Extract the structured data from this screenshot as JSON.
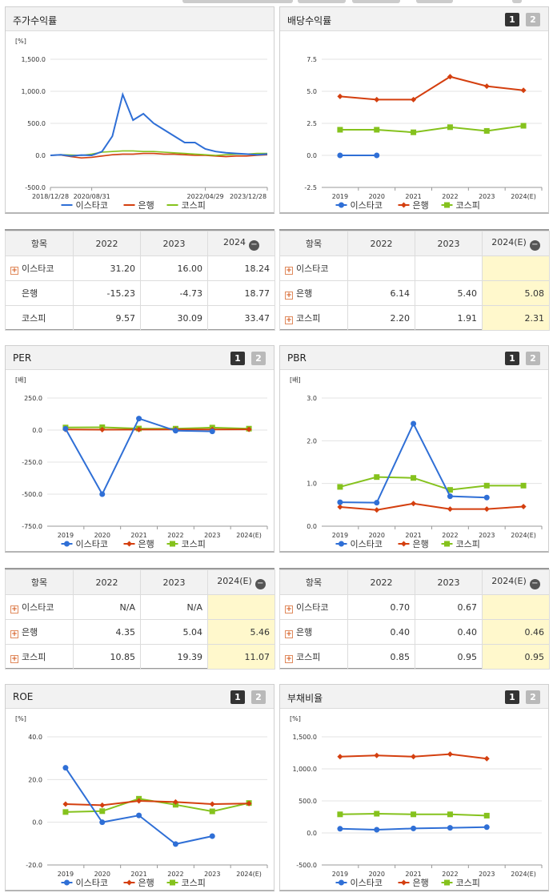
{
  "buttons": {
    "one": "1",
    "two": "2"
  },
  "colors": {
    "isetaco": "#2f6fd6",
    "bank": "#d43f0f",
    "kospi": "#85c21d"
  },
  "stock_panel": {
    "title": "주가수익률",
    "legend": [
      "이스타코",
      "은행",
      "코스피"
    ]
  },
  "stock_table": {
    "headers": [
      "항목",
      "2022",
      "2023",
      "2024"
    ],
    "rows": [
      {
        "name": "이스타코",
        "values": [
          "31.20",
          "16.00",
          "18.24"
        ]
      },
      {
        "name": "은행",
        "values": [
          "-15.23",
          "-4.73",
          "18.77"
        ]
      },
      {
        "name": "코스피",
        "values": [
          "9.57",
          "30.09",
          "33.47"
        ]
      }
    ]
  },
  "dividend_panel": {
    "title": "배당수익률",
    "legend": [
      "이스타코",
      "은행",
      "코스피"
    ]
  },
  "dividend_table": {
    "headers": [
      "항목",
      "2022",
      "2023",
      "2024(E)"
    ],
    "rows": [
      {
        "name": "이스타코",
        "values": [
          "",
          "",
          ""
        ]
      },
      {
        "name": "은행",
        "values": [
          "6.14",
          "5.40",
          "5.08"
        ]
      },
      {
        "name": "코스피",
        "values": [
          "2.20",
          "1.91",
          "2.31"
        ]
      }
    ]
  },
  "per_panel": {
    "title": "PER",
    "legend": [
      "이스타코",
      "은행",
      "코스피"
    ]
  },
  "per_table": {
    "headers": [
      "항목",
      "2022",
      "2023",
      "2024(E)"
    ],
    "rows": [
      {
        "name": "이스타코",
        "values": [
          "N/A",
          "N/A",
          ""
        ]
      },
      {
        "name": "은행",
        "values": [
          "4.35",
          "5.04",
          "5.46"
        ]
      },
      {
        "name": "코스피",
        "values": [
          "10.85",
          "19.39",
          "11.07"
        ]
      }
    ]
  },
  "pbr_panel": {
    "title": "PBR",
    "legend": [
      "이스타코",
      "은행",
      "코스피"
    ]
  },
  "pbr_table": {
    "headers": [
      "항목",
      "2022",
      "2023",
      "2024(E)"
    ],
    "rows": [
      {
        "name": "이스타코",
        "values": [
          "0.70",
          "0.67",
          ""
        ]
      },
      {
        "name": "은행",
        "values": [
          "0.40",
          "0.40",
          "0.46"
        ]
      },
      {
        "name": "코스피",
        "values": [
          "0.85",
          "0.95",
          "0.95"
        ]
      }
    ]
  },
  "roe_panel": {
    "title": "ROE",
    "legend": [
      "이스타코",
      "은행",
      "코스피"
    ]
  },
  "debt_panel": {
    "title": "부채비율",
    "legend": [
      "이스타코",
      "은행",
      "코스피"
    ]
  },
  "chart_data": [
    {
      "id": "stock",
      "type": "line",
      "title": "주가수익률",
      "unit": "[%]",
      "yticks": [
        "1,500.0",
        "1,000.0",
        "500.0",
        "0.0",
        "-500.0"
      ],
      "ylim": [
        -500,
        1500
      ],
      "x_tick_labels": [
        "2018/12/28",
        "2020/08/31",
        "2022/04/29",
        "2023/12/28"
      ],
      "x": [
        "2018/12/28",
        "2019/05",
        "2019/10",
        "2020/03",
        "2020/08/31",
        "2020/12",
        "2021/03",
        "2021/05",
        "2021/06",
        "2021/07",
        "2021/08",
        "2021/09",
        "2021/10",
        "2021/12",
        "2022/02",
        "2022/04/29",
        "2022/07",
        "2022/10",
        "2023/01",
        "2023/04",
        "2023/08",
        "2023/12/28"
      ],
      "series": [
        {
          "name": "이스타코",
          "values": [
            0,
            10,
            -10,
            5,
            0,
            60,
            300,
            950,
            550,
            650,
            500,
            400,
            300,
            200,
            200,
            100,
            60,
            40,
            30,
            20,
            10,
            20
          ]
        },
        {
          "name": "은행",
          "values": [
            0,
            5,
            -20,
            -40,
            -30,
            -10,
            10,
            20,
            20,
            30,
            30,
            20,
            20,
            10,
            0,
            0,
            -10,
            -20,
            -10,
            -10,
            0,
            10
          ]
        },
        {
          "name": "코스피",
          "values": [
            0,
            10,
            5,
            0,
            20,
            50,
            60,
            70,
            70,
            60,
            60,
            50,
            40,
            30,
            20,
            10,
            0,
            10,
            20,
            20,
            30,
            30
          ]
        }
      ]
    },
    {
      "id": "dividend",
      "type": "line",
      "title": "배당수익률",
      "yticks": [
        "7.5",
        "5.0",
        "2.5",
        "0.0",
        "-2.5"
      ],
      "ylim": [
        -2.5,
        7.5
      ],
      "categories": [
        "2019",
        "2020",
        "2021",
        "2022",
        "2023",
        "2024(E)"
      ],
      "series": [
        {
          "name": "이스타코",
          "values": [
            0.0,
            0.0,
            null,
            null,
            null,
            null
          ]
        },
        {
          "name": "은행",
          "values": [
            4.6,
            4.35,
            4.35,
            6.14,
            5.4,
            5.08
          ]
        },
        {
          "name": "코스피",
          "values": [
            2.0,
            2.0,
            1.8,
            2.2,
            1.91,
            2.31
          ]
        }
      ]
    },
    {
      "id": "per",
      "type": "line",
      "title": "PER",
      "unit": "[배]",
      "yticks": [
        "250.0",
        "0.0",
        "-250.0",
        "-500.0",
        "-750.0"
      ],
      "ylim": [
        -750,
        250
      ],
      "categories": [
        "2019",
        "2020",
        "2021",
        "2022",
        "2023",
        "2024(E)"
      ],
      "series": [
        {
          "name": "이스타코",
          "values": [
            10,
            -500,
            90,
            -5,
            -10,
            null
          ]
        },
        {
          "name": "은행",
          "values": [
            5,
            3,
            4,
            4.35,
            5.04,
            5.46
          ]
        },
        {
          "name": "코스피",
          "values": [
            20,
            22,
            12,
            10.85,
            19.39,
            11.07
          ]
        }
      ]
    },
    {
      "id": "pbr",
      "type": "line",
      "title": "PBR",
      "unit": "[배]",
      "yticks": [
        "3.0",
        "2.0",
        "1.0",
        "0.0"
      ],
      "ylim": [
        0,
        3
      ],
      "categories": [
        "2019",
        "2020",
        "2021",
        "2022",
        "2023",
        "2024(E)"
      ],
      "series": [
        {
          "name": "이스타코",
          "values": [
            0.56,
            0.55,
            2.4,
            0.7,
            0.67,
            null
          ]
        },
        {
          "name": "은행",
          "values": [
            0.45,
            0.38,
            0.53,
            0.4,
            0.4,
            0.46
          ]
        },
        {
          "name": "코스피",
          "values": [
            0.92,
            1.15,
            1.13,
            0.85,
            0.95,
            0.95
          ]
        }
      ]
    },
    {
      "id": "roe",
      "type": "line",
      "title": "ROE",
      "unit": "[%]",
      "yticks": [
        "40.0",
        "20.0",
        "0.0",
        "-20.0"
      ],
      "ylim": [
        -20,
        40
      ],
      "categories": [
        "2019",
        "2020",
        "2021",
        "2022",
        "2023",
        "2024(E)"
      ],
      "series": [
        {
          "name": "이스타코",
          "values": [
            25.5,
            0.0,
            3.2,
            -10.2,
            -6.5,
            null
          ]
        },
        {
          "name": "은행",
          "values": [
            8.5,
            8.0,
            10.0,
            9.5,
            8.5,
            8.8
          ]
        },
        {
          "name": "코스피",
          "values": [
            4.8,
            5.2,
            11.0,
            8.2,
            5.1,
            9.0
          ]
        }
      ]
    },
    {
      "id": "debt",
      "type": "line",
      "title": "부채비율",
      "unit": "[%]",
      "yticks": [
        "1,500.0",
        "1,000.0",
        "500.0",
        "0.0",
        "-500.0"
      ],
      "ylim": [
        -500,
        1500
      ],
      "categories": [
        "2019",
        "2020",
        "2021",
        "2022",
        "2023",
        "2024(E)"
      ],
      "series": [
        {
          "name": "이스타코",
          "values": [
            65,
            50,
            70,
            80,
            90,
            null
          ]
        },
        {
          "name": "은행",
          "values": [
            1190,
            1210,
            1190,
            1230,
            1160,
            null
          ]
        },
        {
          "name": "코스피",
          "values": [
            290,
            300,
            290,
            290,
            270,
            null
          ]
        }
      ]
    }
  ]
}
